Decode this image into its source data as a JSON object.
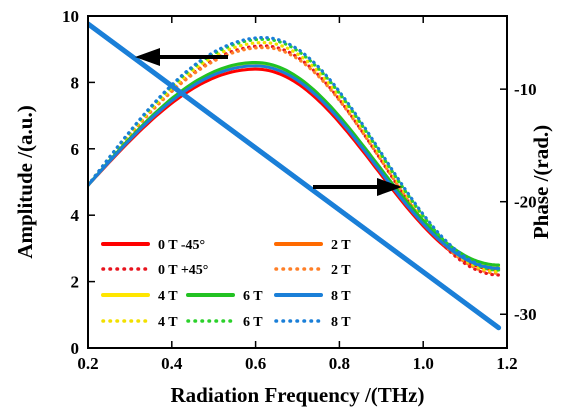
{
  "chart_data": {
    "type": "line",
    "title": "",
    "xlabel": "Radiation Frequency /(THz)",
    "ylabel_left": "Amplitude /(a.u.)",
    "ylabel_right": "Phase /(rad.)",
    "xlim": [
      0.2,
      1.2
    ],
    "ylim_left": [
      0,
      10
    ],
    "ylim_right": [
      -33,
      -3.5
    ],
    "x_ticks": [
      "0.2",
      "0.4",
      "0.6",
      "0.8",
      "1.0",
      "1.2"
    ],
    "y_left_ticks": [
      "0",
      "2",
      "4",
      "6",
      "8",
      "10"
    ],
    "y_right_ticks": [
      "-10",
      "-20",
      "-30"
    ],
    "grid": false,
    "legend_placement": "lower-left",
    "amplitude_series": [
      {
        "name": "0 T -45°",
        "style": "solid",
        "color": "#ff0000",
        "peak_x": 0.6,
        "peak_y": 8.4,
        "end_y": 2.35
      },
      {
        "name": "0 T +45°",
        "style": "dotted",
        "color": "#e8141e",
        "peak_x": 0.62,
        "peak_y": 9.1,
        "end_y": 2.2
      },
      {
        "name": "2 T",
        "style": "solid",
        "color": "#ff6a00",
        "peak_x": 0.6,
        "peak_y": 8.5,
        "end_y": 2.4
      },
      {
        "name": "2 T",
        "style": "dotted",
        "color": "#ff7f27",
        "peak_x": 0.62,
        "peak_y": 9.05,
        "end_y": 2.25
      },
      {
        "name": "4 T",
        "style": "solid",
        "color": "#ffe600",
        "peak_x": 0.6,
        "peak_y": 8.55,
        "end_y": 2.45
      },
      {
        "name": "4 T",
        "style": "dotted",
        "color": "#f2e000",
        "peak_x": 0.62,
        "peak_y": 9.2,
        "end_y": 2.3
      },
      {
        "name": "6 T",
        "style": "solid",
        "color": "#22c222",
        "peak_x": 0.6,
        "peak_y": 8.6,
        "end_y": 2.5
      },
      {
        "name": "6 T",
        "style": "dotted",
        "color": "#2bd12b",
        "peak_x": 0.62,
        "peak_y": 9.3,
        "end_y": 2.35
      },
      {
        "name": "8 T",
        "style": "solid",
        "color": "#1a7fd8",
        "peak_x": 0.6,
        "peak_y": 8.5,
        "end_y": 2.4
      },
      {
        "name": "8 T",
        "style": "dotted",
        "color": "#1a7fd8",
        "peak_x": 0.62,
        "peak_y": 9.35,
        "end_y": 2.4
      }
    ],
    "amplitude_start": {
      "x": 0.2,
      "y": 4.9
    },
    "phase_line": {
      "axis": "right",
      "points": [
        {
          "x": 0.2,
          "y": -4.2
        },
        {
          "x": 1.18,
          "y": -31.2
        }
      ],
      "colors": [
        "#1a7fd8",
        "#ff0000",
        "#22c222"
      ]
    },
    "annotations": [
      {
        "type": "arrow",
        "direction": "left",
        "meaning": "amplitude curves use left axis"
      },
      {
        "type": "arrow",
        "direction": "right",
        "meaning": "phase lines use right axis"
      }
    ],
    "legend": [
      {
        "label": "0 T -45°",
        "color": "#ff0000",
        "style": "solid"
      },
      {
        "label": "2 T",
        "color": "#ff6a00",
        "style": "solid"
      },
      {
        "label": "0 T +45°",
        "color": "#e8141e",
        "style": "dotted"
      },
      {
        "label": "2 T",
        "color": "#ff7f27",
        "style": "dotted"
      },
      {
        "label": "4 T",
        "color": "#ffe600",
        "style": "solid"
      },
      {
        "label": "6 T",
        "color": "#22c222",
        "style": "solid"
      },
      {
        "label": "8 T",
        "color": "#1a7fd8",
        "style": "solid"
      },
      {
        "label": "4 T",
        "color": "#f2e000",
        "style": "dotted"
      },
      {
        "label": "6 T",
        "color": "#2bd12b",
        "style": "dotted"
      },
      {
        "label": "8 T",
        "color": "#1a7fd8",
        "style": "dotted"
      }
    ]
  }
}
